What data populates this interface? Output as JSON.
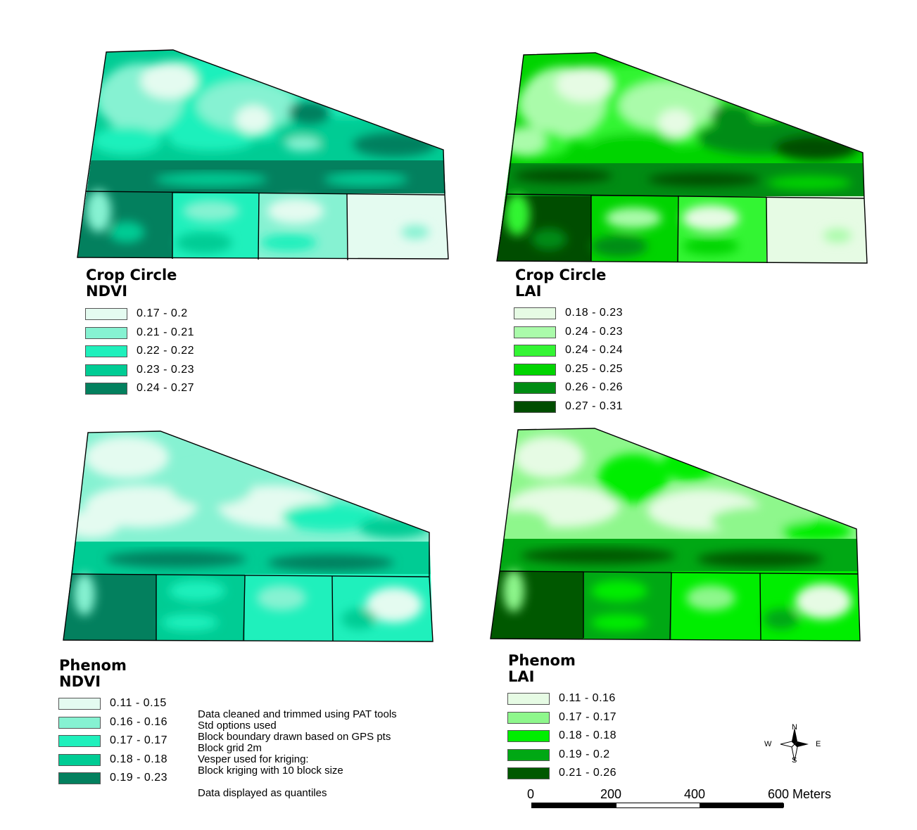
{
  "panels": [
    {
      "id": "crop-circle-ndvi",
      "title_line1": "Crop Circle",
      "title_line2": "NDVI",
      "legend": [
        {
          "label": "0.17 - 0.2",
          "color": "#e4fbf0"
        },
        {
          "label": "0.21 - 0.21",
          "color": "#86f2d2"
        },
        {
          "label": "0.22 - 0.22",
          "color": "#1ff0bc"
        },
        {
          "label": "0.23 - 0.23",
          "color": "#00cc94"
        },
        {
          "label": "0.24 - 0.27",
          "color": "#03805e"
        }
      ]
    },
    {
      "id": "crop-circle-lai",
      "title_line1": "Crop Circle",
      "title_line2": "LAI",
      "legend": [
        {
          "label": "0.18 - 0.23",
          "color": "#e6fbe4"
        },
        {
          "label": "0.24 - 0.23",
          "color": "#aafbaa"
        },
        {
          "label": "0.24 - 0.24",
          "color": "#33f533"
        },
        {
          "label": "0.25 - 0.25",
          "color": "#00d400"
        },
        {
          "label": "0.26 - 0.26",
          "color": "#008c13"
        },
        {
          "label": "0.27 - 0.31",
          "color": "#004d00"
        }
      ]
    },
    {
      "id": "phenom-ndvi",
      "title_line1": "Phenom",
      "title_line2": "NDVI",
      "legend": [
        {
          "label": "0.11 - 0.15",
          "color": "#e4fbf0"
        },
        {
          "label": "0.16 - 0.16",
          "color": "#86f2d2"
        },
        {
          "label": "0.17 - 0.17",
          "color": "#1ff0bc"
        },
        {
          "label": "0.18 - 0.18",
          "color": "#00cc94"
        },
        {
          "label": "0.19 - 0.23",
          "color": "#03805e"
        }
      ]
    },
    {
      "id": "phenom-lai",
      "title_line1": "Phenom",
      "title_line2": "LAI",
      "legend": [
        {
          "label": "0.11 - 0.16",
          "color": "#e6fbe4"
        },
        {
          "label": "0.17 - 0.17",
          "color": "#8ef78c"
        },
        {
          "label": "0.18 - 0.18",
          "color": "#00ee00"
        },
        {
          "label": "0.19 - 0.2",
          "color": "#00a814"
        },
        {
          "label": "0.21 - 0.26",
          "color": "#005800"
        }
      ]
    }
  ],
  "notes": [
    "Data cleaned and trimmed using PAT tools",
    "Std options used",
    "Block boundary drawn based on GPS pts",
    "Block grid 2m",
    "Vesper used for kriging:",
    "Block kriging with 10 block size",
    "Data displayed as quantiles"
  ],
  "scale": {
    "labels": [
      "0",
      "200",
      "400",
      "600 Meters"
    ]
  },
  "compass": {
    "n": "N",
    "s": "S",
    "e": "E",
    "w": "W"
  }
}
